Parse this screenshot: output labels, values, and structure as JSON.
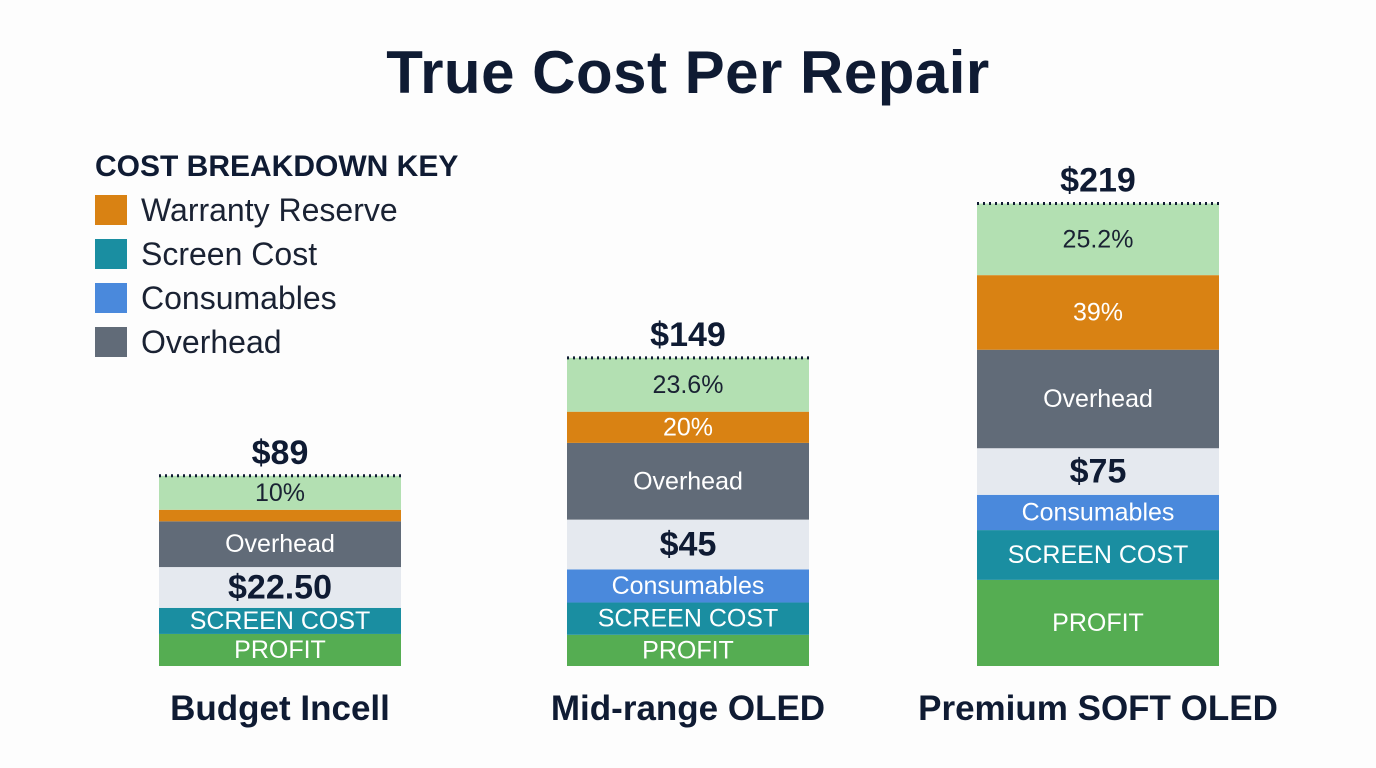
{
  "chart_data": {
    "type": "bar",
    "stacked": true,
    "title": "True Cost Per Repair",
    "legend": {
      "title": "COST BREAKDOWN KEY",
      "placement": "top-left",
      "items": [
        {
          "label": "Warranty Reserve",
          "color": "#d98213"
        },
        {
          "label": "Screen Cost",
          "color": "#1a8ea1"
        },
        {
          "label": "Consumables",
          "color": "#4a89dc"
        },
        {
          "label": "Overhead",
          "color": "#616b78"
        }
      ]
    },
    "ylim": [
      0,
      219
    ],
    "grid": false,
    "bars": [
      {
        "category": "Budget Incell",
        "total_label": "$89",
        "total": 89,
        "segments": [
          {
            "name": "profit",
            "label": "PROFIT",
            "value": 15.0,
            "color": "#55ad52",
            "text_color": "#ffffff",
            "style": "normal"
          },
          {
            "name": "screen-cost",
            "label": "SCREEN COST",
            "value": 12.2,
            "color": "#1a8ea1",
            "text_color": "#ffffff",
            "style": "normal"
          },
          {
            "name": "cost-total",
            "label": "$22.50",
            "value": 19.1,
            "color": "#e5e9ef",
            "text_color": "#0f1b33",
            "style": "bold"
          },
          {
            "name": "overhead",
            "label": "Overhead",
            "value": 21.4,
            "color": "#616b78",
            "text_color": "#ffffff",
            "style": "normal"
          },
          {
            "name": "warranty-reserve",
            "label": "",
            "value": 5.4,
            "color": "#d98213",
            "text_color": "#ffffff",
            "style": "normal"
          },
          {
            "name": "margin",
            "label": "10%",
            "value": 15.9,
            "color": "#b3e0b2",
            "text_color": "#1a2233",
            "style": "normal"
          }
        ]
      },
      {
        "category": "Mid-range OLED",
        "total_label": "$149",
        "total": 149,
        "segments": [
          {
            "name": "profit",
            "label": "PROFIT",
            "value": 14.6,
            "color": "#55ad52",
            "text_color": "#ffffff",
            "style": "normal"
          },
          {
            "name": "screen-cost",
            "label": "SCREEN COST",
            "value": 15.1,
            "color": "#1a8ea1",
            "text_color": "#ffffff",
            "style": "normal"
          },
          {
            "name": "consumables",
            "label": "Consumables",
            "value": 15.5,
            "color": "#4a89dc",
            "text_color": "#ffffff",
            "style": "normal"
          },
          {
            "name": "cost-total",
            "label": "$45",
            "value": 23.3,
            "color": "#e5e9ef",
            "text_color": "#0f1b33",
            "style": "bold"
          },
          {
            "name": "overhead",
            "label": "Overhead",
            "value": 35.9,
            "color": "#616b78",
            "text_color": "#ffffff",
            "style": "normal"
          },
          {
            "name": "warranty-reserve",
            "label": "20%",
            "value": 14.6,
            "color": "#d98213",
            "text_color": "#ffffff",
            "style": "normal"
          },
          {
            "name": "margin",
            "label": "23.6%",
            "value": 25.2,
            "color": "#b3e0b2",
            "text_color": "#1a2233",
            "style": "normal"
          }
        ]
      },
      {
        "category": "Premium SOFT OLED",
        "total_label": "$219",
        "total": 219,
        "segments": [
          {
            "name": "profit",
            "label": "PROFIT",
            "value": 40.3,
            "color": "#55ad52",
            "text_color": "#ffffff",
            "style": "normal"
          },
          {
            "name": "screen-cost",
            "label": "SCREEN COST",
            "value": 23.3,
            "color": "#1a8ea1",
            "text_color": "#ffffff",
            "style": "normal"
          },
          {
            "name": "consumables",
            "label": "Consumables",
            "value": 16.5,
            "color": "#4a89dc",
            "text_color": "#ffffff",
            "style": "normal"
          },
          {
            "name": "cost-total",
            "label": "$75",
            "value": 21.8,
            "color": "#e5e9ef",
            "text_color": "#0f1b33",
            "style": "bold"
          },
          {
            "name": "overhead",
            "label": "Overhead",
            "value": 46.1,
            "color": "#616b78",
            "text_color": "#ffffff",
            "style": "normal"
          },
          {
            "name": "warranty-reserve",
            "label": "39%",
            "value": 34.9,
            "color": "#d98213",
            "text_color": "#ffffff",
            "style": "normal"
          },
          {
            "name": "margin",
            "label": "25.2%",
            "value": 33.5,
            "color": "#b3e0b2",
            "text_color": "#1a2233",
            "style": "normal"
          }
        ]
      }
    ]
  }
}
